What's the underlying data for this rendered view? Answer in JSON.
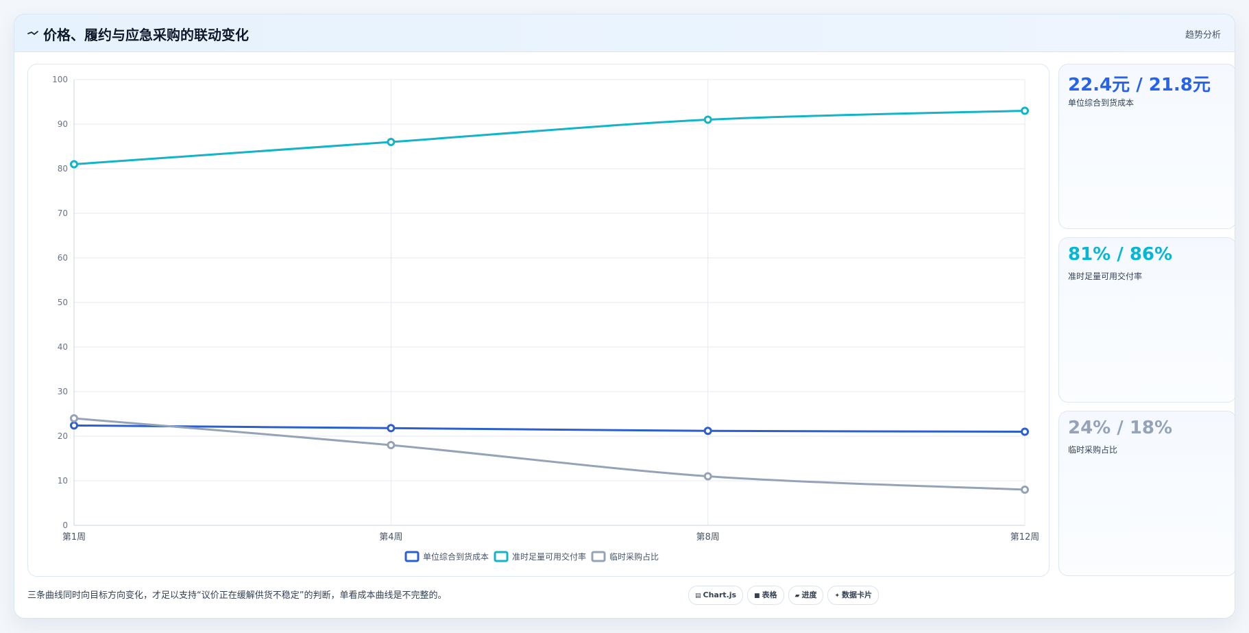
{
  "panel": {
    "title": "价格、履约与应急采购的联动变化",
    "tag": "趋势分析",
    "header_icon": "trend-icon",
    "note": "三条曲线同时向目标方向变化，才足以支持“议价正在缓解供货不稳定”的判断，单看成本曲线是不完整的。"
  },
  "kpis": [
    {
      "value": "22.4元 / 21.8元",
      "label": "单位综合到货成本",
      "color": "#2563eb"
    },
    {
      "value": "81% / 86%",
      "label": "准时足量可用交付率",
      "color": "#06b6d4"
    },
    {
      "value": "24% / 18%",
      "label": "临时采购占比",
      "color": "#94a3b8"
    }
  ],
  "footer_tags": [
    {
      "icon": "chart-icon",
      "glyph": "▤",
      "label": "Chart.js"
    },
    {
      "icon": "table-icon",
      "glyph": "■",
      "label": "表格"
    },
    {
      "icon": "progress-icon",
      "glyph": "▰",
      "label": "进度"
    },
    {
      "icon": "sparkle-icon",
      "glyph": "✦",
      "label": "数据卡片"
    }
  ],
  "chart_data": {
    "type": "line",
    "categories": [
      "第1周",
      "第4周",
      "第8周",
      "第12周"
    ],
    "ylim": [
      0,
      100
    ],
    "yticks": [
      "0",
      "10",
      "20",
      "30",
      "40",
      "50",
      "60",
      "70",
      "80",
      "90",
      "100"
    ],
    "grid": true,
    "legend": "bottom",
    "series": [
      {
        "name": "单位综合到货成本",
        "values": [
          22.4,
          21.8,
          21.2,
          21.0
        ],
        "color": "#2b5fd0"
      },
      {
        "name": "准时足量可用交付率",
        "values": [
          81,
          86,
          91,
          93
        ],
        "color": "#13b3c8"
      },
      {
        "name": "临时采购占比",
        "values": [
          24,
          18,
          11,
          8
        ],
        "color": "#95a3b7"
      }
    ]
  }
}
